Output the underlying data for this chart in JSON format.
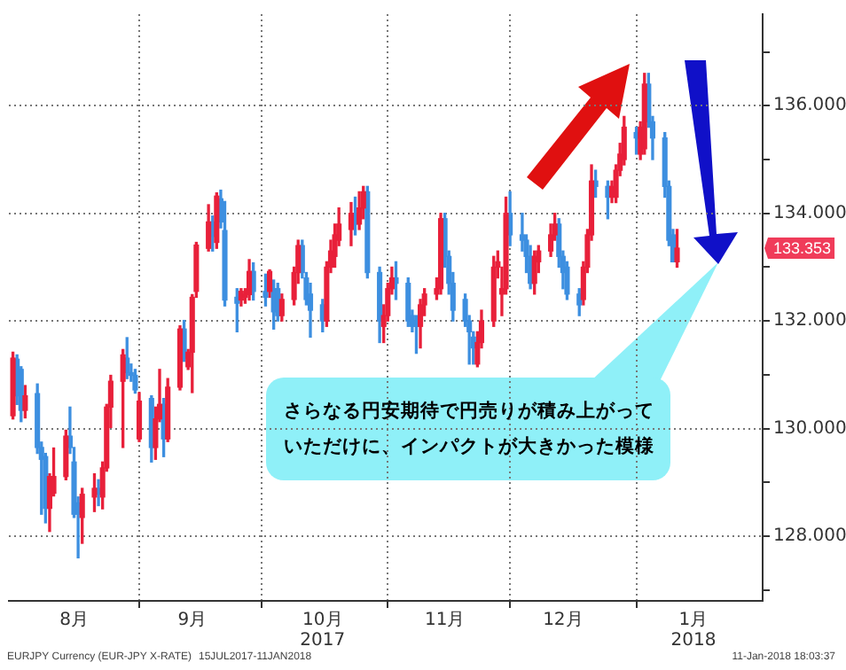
{
  "chart_data": {
    "type": "candlestick",
    "xlim": [
      "2017-07-31",
      "2018-02-01"
    ],
    "xticks": [
      {
        "value": "2017-08-16",
        "label": "8月"
      },
      {
        "value": "2017-09-01",
        "label": null
      },
      {
        "value": "2017-09-14",
        "label": "9月"
      },
      {
        "value": "2017-10-01",
        "label": null
      },
      {
        "value": "2017-10-16",
        "label": "10月\n2017"
      },
      {
        "value": "2017-11-01",
        "label": null
      },
      {
        "value": "2017-11-15",
        "label": "11月"
      },
      {
        "value": "2017-12-01",
        "label": null
      },
      {
        "value": "2017-12-14",
        "label": "12月"
      },
      {
        "value": "2018-01-01",
        "label": null
      },
      {
        "value": "2018-01-15",
        "label": "1月\n2018"
      }
    ],
    "ylim": [
      126.8,
      137.7
    ],
    "yticks": [
      {
        "value": 127,
        "label": null
      },
      {
        "value": 128,
        "label": "128.000"
      },
      {
        "value": 129,
        "label": null
      },
      {
        "value": 130,
        "label": "130.000"
      },
      {
        "value": 131,
        "label": null
      },
      {
        "value": 132,
        "label": "132.000"
      },
      {
        "value": 133,
        "label": null
      },
      {
        "value": 134,
        "label": "134.000"
      },
      {
        "value": 135,
        "label": null
      },
      {
        "value": 136,
        "label": "136.000"
      },
      {
        "value": 137,
        "label": null
      }
    ],
    "grid": true,
    "annotations": [
      "さらなる円安期待で円売りが積み上がっていただけに、インパクトが大きかった模様",
      {
        "text": "133.353",
        "y": 133.353
      },
      "EURJPY Currency (EUR-JPY X-RATE)",
      "15JUL2017-11JAN2018",
      "11-Jan-2018 18:03:37"
    ],
    "series": [
      {
        "color": "#e8203a",
        "x": [
          "2017-08-01",
          "2017-08-04",
          "2017-08-10",
          "2017-08-11",
          "2017-08-14",
          "2017-08-18",
          "2017-08-21",
          "2017-08-23",
          "2017-08-24",
          "2017-08-25",
          "2017-08-28",
          "2017-09-01",
          "2017-09-05",
          "2017-09-06",
          "2017-09-08",
          "2017-09-11",
          "2017-09-13",
          "2017-09-14",
          "2017-09-15",
          "2017-09-18",
          "2017-09-20",
          "2017-09-26",
          "2017-09-27",
          "2017-09-28",
          "2017-10-03",
          "2017-10-06",
          "2017-10-09",
          "2017-10-10",
          "2017-10-17",
          "2017-10-18",
          "2017-10-19",
          "2017-10-20",
          "2017-10-23",
          "2017-10-25",
          "2017-10-26",
          "2017-10-31",
          "2017-11-01",
          "2017-11-02",
          "2017-11-09",
          "2017-11-10",
          "2017-11-13",
          "2017-11-14",
          "2017-11-23",
          "2017-11-24",
          "2017-11-27",
          "2017-11-28",
          "2017-11-29",
          "2017-11-30",
          "2017-12-07",
          "2017-12-08",
          "2017-12-11",
          "2017-12-12",
          "2017-12-19",
          "2017-12-20",
          "2017-12-21",
          "2017-12-26",
          "2017-12-27",
          "2017-12-28",
          "2017-12-29",
          "2018-01-02",
          "2018-01-03",
          "2018-01-11"
        ],
        "ohlc": [
          [
            130.24,
            131.42,
            130.18,
            131.31
          ],
          [
            130.34,
            130.8,
            130.2,
            130.61
          ],
          [
            128.52,
            129.16,
            128.09,
            129.11
          ],
          [
            128.8,
            129.64,
            128.75,
            129.11
          ],
          [
            129.11,
            129.97,
            129.05,
            129.86
          ],
          [
            128.35,
            128.89,
            127.87,
            128.78
          ],
          [
            128.73,
            129.16,
            128.46,
            128.89
          ],
          [
            128.73,
            129.38,
            128.51,
            129.27
          ],
          [
            129.27,
            130.45,
            129.21,
            130.4
          ],
          [
            130.4,
            130.99,
            130.02,
            130.88
          ],
          [
            130.88,
            131.47,
            129.65,
            131.37
          ],
          [
            129.81,
            130.67,
            129.76,
            130.51
          ],
          [
            129.65,
            130.4,
            129.43,
            130.18
          ],
          [
            130.18,
            131.1,
            130.13,
            130.45
          ],
          [
            129.81,
            130.93,
            129.76,
            130.77
          ],
          [
            130.77,
            131.91,
            130.72,
            131.85
          ],
          [
            131.15,
            131.47,
            131.1,
            131.42
          ],
          [
            131.42,
            132.49,
            130.67,
            132.44
          ],
          [
            132.55,
            133.46,
            132.44,
            133.41
          ],
          [
            133.35,
            134.16,
            133.3,
            133.84
          ],
          [
            133.46,
            134.38,
            133.35,
            134.32
          ],
          [
            132.39,
            132.6,
            132.28,
            132.55
          ],
          [
            132.44,
            132.6,
            132.33,
            132.49
          ],
          [
            132.49,
            133.14,
            132.39,
            132.92
          ],
          [
            132.55,
            132.95,
            132.44,
            132.92
          ],
          [
            132.1,
            132.5,
            132.0,
            132.4
          ],
          [
            132.4,
            133.0,
            132.3,
            132.9
          ],
          [
            132.9,
            133.5,
            132.7,
            133.4
          ],
          [
            132.0,
            133.1,
            131.9,
            133.0
          ],
          [
            133.0,
            133.5,
            132.9,
            133.3
          ],
          [
            133.2,
            133.8,
            133.0,
            133.6
          ],
          [
            133.5,
            134.1,
            133.4,
            133.8
          ],
          [
            133.7,
            134.2,
            133.4,
            134.0
          ],
          [
            133.8,
            134.4,
            133.7,
            134.1
          ],
          [
            134.1,
            134.5,
            133.9,
            134.4
          ],
          [
            131.9,
            132.3,
            131.6,
            132.1
          ],
          [
            132.1,
            132.7,
            132.0,
            132.6
          ],
          [
            132.6,
            133.0,
            132.5,
            132.8
          ],
          [
            131.9,
            132.4,
            131.5,
            132.3
          ],
          [
            132.3,
            132.6,
            132.1,
            132.5
          ],
          [
            132.5,
            132.8,
            132.4,
            132.6
          ],
          [
            132.6,
            134.0,
            132.5,
            133.9
          ],
          [
            131.2,
            131.8,
            131.15,
            131.6
          ],
          [
            131.6,
            132.2,
            131.5,
            132.0
          ],
          [
            132.0,
            133.2,
            131.9,
            133.0
          ],
          [
            133.0,
            133.3,
            132.8,
            133.1
          ],
          [
            132.5,
            133.0,
            132.1,
            132.6
          ],
          [
            132.6,
            134.3,
            132.5,
            134.0
          ],
          [
            132.7,
            133.3,
            132.5,
            133.2
          ],
          [
            133.1,
            133.4,
            132.9,
            133.3
          ],
          [
            133.3,
            133.8,
            133.2,
            133.6
          ],
          [
            133.6,
            134.0,
            133.5,
            133.8
          ],
          [
            132.4,
            133.1,
            132.3,
            133.0
          ],
          [
            133.0,
            133.7,
            132.9,
            133.6
          ],
          [
            133.6,
            134.9,
            133.5,
            134.6
          ],
          [
            134.3,
            134.6,
            134.2,
            134.5
          ],
          [
            134.3,
            134.9,
            134.2,
            134.8
          ],
          [
            134.8,
            135.3,
            134.7,
            135.1
          ],
          [
            135.0,
            135.8,
            134.9,
            135.6
          ],
          [
            135.1,
            135.7,
            135.0,
            135.6
          ],
          [
            135.2,
            136.6,
            135.1,
            136.4
          ],
          [
            133.1,
            133.7,
            133.0,
            133.353
          ]
        ]
      },
      {
        "color": "#3d8fe0",
        "x": [
          "2017-08-02",
          "2017-08-03",
          "2017-08-07",
          "2017-08-08",
          "2017-08-09",
          "2017-08-15",
          "2017-08-16",
          "2017-08-17",
          "2017-08-22",
          "2017-08-29",
          "2017-08-30",
          "2017-08-31",
          "2017-09-04",
          "2017-09-07",
          "2017-09-12",
          "2017-09-19",
          "2017-09-21",
          "2017-09-22",
          "2017-09-25",
          "2017-09-29",
          "2017-10-02",
          "2017-10-04",
          "2017-10-05",
          "2017-10-11",
          "2017-10-12",
          "2017-10-13",
          "2017-10-16",
          "2017-10-24",
          "2017-10-27",
          "2017-10-30",
          "2017-11-03",
          "2017-11-06",
          "2017-11-07",
          "2017-11-08",
          "2017-11-15",
          "2017-11-16",
          "2017-11-17",
          "2017-11-20",
          "2017-11-21",
          "2017-11-22",
          "2017-12-01",
          "2017-12-04",
          "2017-12-05",
          "2017-12-06",
          "2017-12-13",
          "2017-12-14",
          "2017-12-15",
          "2017-12-18",
          "2017-12-22",
          "2017-12-25",
          "2018-01-01",
          "2018-01-04",
          "2018-01-05",
          "2018-01-08",
          "2018-01-09",
          "2018-01-10"
        ],
        "ohlc": [
          [
            131.29,
            131.37,
            130.45,
            130.61
          ],
          [
            131.1,
            131.15,
            130.13,
            130.34
          ],
          [
            130.65,
            130.83,
            129.54,
            129.65
          ],
          [
            129.65,
            129.75,
            128.41,
            129.43
          ],
          [
            129.48,
            129.54,
            128.25,
            128.52
          ],
          [
            129.86,
            130.4,
            129.54,
            129.65
          ],
          [
            129.38,
            129.65,
            128.35,
            128.41
          ],
          [
            128.62,
            128.73,
            127.6,
            128.41
          ],
          [
            128.89,
            129.05,
            128.57,
            128.78
          ],
          [
            131.31,
            131.69,
            130.93,
            131.04
          ],
          [
            131.04,
            131.2,
            130.88,
            130.99
          ],
          [
            130.99,
            131.1,
            130.66,
            130.72
          ],
          [
            130.56,
            130.61,
            129.38,
            129.65
          ],
          [
            130.45,
            130.56,
            129.48,
            129.81
          ],
          [
            131.85,
            132.01,
            131.25,
            131.31
          ],
          [
            133.84,
            133.95,
            133.3,
            133.57
          ],
          [
            134.27,
            134.43,
            133.73,
            133.84
          ],
          [
            133.68,
            134.22,
            132.28,
            132.39
          ],
          [
            132.44,
            132.6,
            131.8,
            132.33
          ],
          [
            132.92,
            133.08,
            132.39,
            132.55
          ],
          [
            132.55,
            132.87,
            132.28,
            132.44
          ],
          [
            132.6,
            132.76,
            131.85,
            132.17
          ],
          [
            132.6,
            132.7,
            132.0,
            132.1
          ],
          [
            133.4,
            133.5,
            132.8,
            132.9
          ],
          [
            132.8,
            132.9,
            132.3,
            132.4
          ],
          [
            132.5,
            132.7,
            131.7,
            132.2
          ],
          [
            132.3,
            132.4,
            131.8,
            132.0
          ],
          [
            134.0,
            134.3,
            133.6,
            133.8
          ],
          [
            134.4,
            134.5,
            132.8,
            132.9
          ],
          [
            132.9,
            133.0,
            131.6,
            132.0
          ],
          [
            132.8,
            133.1,
            132.4,
            132.7
          ],
          [
            132.7,
            132.8,
            131.9,
            132.0
          ],
          [
            132.1,
            132.2,
            131.8,
            131.9
          ],
          [
            132.0,
            132.1,
            131.4,
            131.9
          ],
          [
            133.9,
            134.0,
            133.0,
            133.2
          ],
          [
            133.2,
            133.3,
            132.5,
            132.7
          ],
          [
            132.7,
            132.9,
            132.0,
            132.2
          ],
          [
            132.4,
            132.5,
            131.9,
            132.0
          ],
          [
            132.0,
            132.1,
            131.2,
            131.8
          ],
          [
            131.7,
            131.8,
            131.2,
            131.5
          ],
          [
            134.0,
            134.4,
            133.4,
            133.6
          ],
          [
            133.6,
            134.0,
            133.3,
            133.5
          ],
          [
            133.5,
            133.6,
            132.9,
            133.2
          ],
          [
            133.2,
            133.4,
            132.6,
            132.7
          ],
          [
            133.8,
            133.9,
            133.0,
            133.2
          ],
          [
            133.2,
            133.3,
            132.6,
            132.9
          ],
          [
            133.0,
            133.1,
            132.4,
            132.5
          ],
          [
            132.5,
            132.6,
            132.1,
            132.3
          ],
          [
            134.6,
            134.8,
            134.3,
            134.5
          ],
          [
            134.5,
            134.6,
            133.9,
            134.3
          ],
          [
            135.5,
            135.6,
            135.1,
            135.4
          ],
          [
            136.4,
            136.6,
            135.6,
            135.7
          ],
          [
            135.7,
            135.8,
            135.0,
            135.4
          ],
          [
            135.4,
            135.5,
            134.3,
            134.5
          ],
          [
            134.5,
            134.6,
            133.4,
            133.5
          ],
          [
            133.6,
            133.7,
            133.1,
            133.1
          ]
        ]
      }
    ]
  }
}
